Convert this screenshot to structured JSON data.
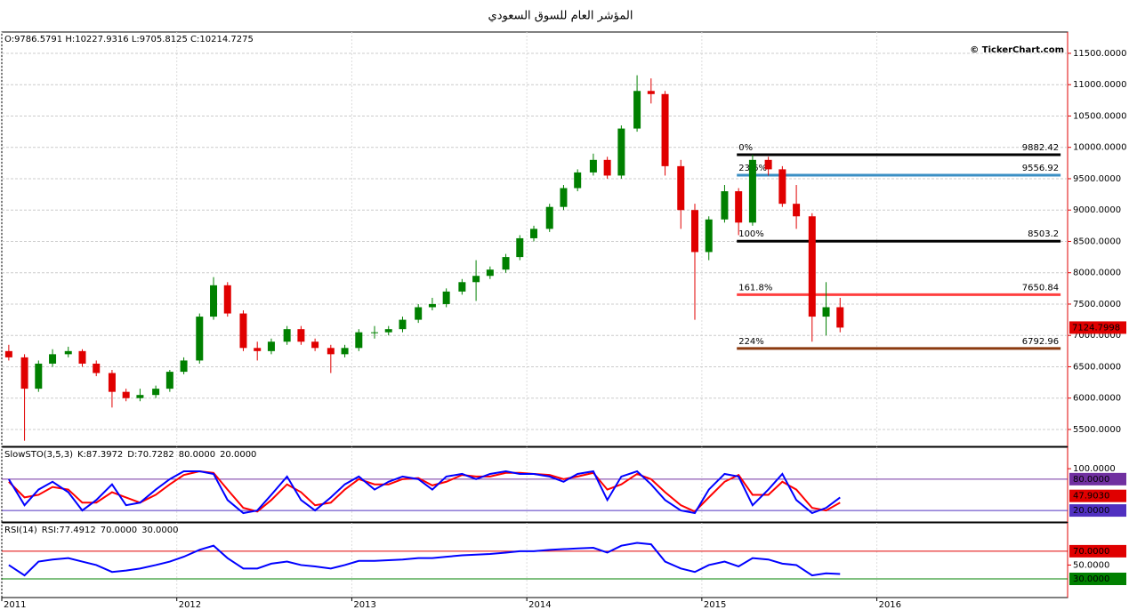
{
  "title": "المؤشر العام للسوق السعودي",
  "chart_data": [
    {
      "type": "candlestick",
      "ohlc_label": "O:9786.5791 H:10227.9316 L:9705.8125 C:10214.7275",
      "watermark": "© TickerChart.com",
      "up_color": "#008000",
      "down_color": "#e00000",
      "x": [
        2011.04,
        2011.13,
        2011.21,
        2011.29,
        2011.38,
        2011.46,
        2011.54,
        2011.63,
        2011.71,
        2011.79,
        2011.88,
        2011.96,
        2012.04,
        2012.13,
        2012.21,
        2012.29,
        2012.38,
        2012.46,
        2012.54,
        2012.63,
        2012.71,
        2012.79,
        2012.88,
        2012.96,
        2013.04,
        2013.13,
        2013.21,
        2013.29,
        2013.38,
        2013.46,
        2013.54,
        2013.63,
        2013.71,
        2013.79,
        2013.88,
        2013.96,
        2014.04,
        2014.13,
        2014.21,
        2014.29,
        2014.38,
        2014.46,
        2014.54,
        2014.63,
        2014.71,
        2014.79,
        2014.88,
        2014.96,
        2015.04,
        2015.13,
        2015.21,
        2015.29,
        2015.38,
        2015.46,
        2015.54,
        2015.63,
        2015.71,
        2015.79
      ],
      "open": [
        6750,
        6650,
        6150,
        6550,
        6700,
        6750,
        6550,
        6400,
        6100,
        6000,
        6050,
        6150,
        6420,
        6600,
        7300,
        7800,
        7350,
        6800,
        6750,
        6900,
        7100,
        6900,
        6800,
        6700,
        6800,
        7050,
        7050,
        7100,
        7250,
        7450,
        7500,
        7700,
        7850,
        7950,
        8050,
        8250,
        8550,
        8700,
        9050,
        9350,
        9600,
        9800,
        9550,
        10300,
        10900,
        10850,
        9700,
        9000,
        8330,
        8850,
        9300,
        8800,
        9800,
        9650,
        9100,
        8900,
        7300,
        7450
      ],
      "high": [
        6850,
        6700,
        6600,
        6780,
        6820,
        6780,
        6600,
        6450,
        6150,
        6150,
        6200,
        6450,
        6650,
        7350,
        7930,
        7850,
        7400,
        6900,
        6950,
        7150,
        7150,
        6950,
        6850,
        6850,
        7100,
        7150,
        7150,
        7300,
        7500,
        7600,
        7750,
        7900,
        8200,
        8100,
        8300,
        8600,
        8750,
        9100,
        9400,
        9650,
        9900,
        9850,
        10350,
        11150,
        11100,
        10900,
        9800,
        9100,
        8900,
        9400,
        9350,
        9880,
        9850,
        9700,
        9400,
        8950,
        7850,
        7600
      ],
      "low": [
        6600,
        5320,
        6100,
        6500,
        6650,
        6500,
        6350,
        5850,
        5950,
        5950,
        6000,
        6100,
        6380,
        6550,
        7250,
        7300,
        6750,
        6600,
        6700,
        6850,
        6850,
        6750,
        6400,
        6650,
        6750,
        6950,
        7000,
        7050,
        7200,
        7400,
        7450,
        7650,
        7550,
        7900,
        8000,
        8200,
        8500,
        8650,
        9000,
        9300,
        9550,
        9500,
        9500,
        10250,
        10700,
        9550,
        8700,
        7250,
        8200,
        8800,
        8600,
        8750,
        9550,
        9050,
        8700,
        6900,
        7000,
        7050
      ],
      "close": [
        6650,
        6150,
        6550,
        6700,
        6750,
        6550,
        6400,
        6100,
        6000,
        6050,
        6150,
        6420,
        6600,
        7300,
        7800,
        7350,
        6800,
        6750,
        6900,
        7100,
        6900,
        6800,
        6700,
        6800,
        7050,
        7050,
        7100,
        7250,
        7450,
        7500,
        7700,
        7850,
        7950,
        8050,
        8250,
        8550,
        8700,
        9050,
        9350,
        9600,
        9800,
        9550,
        10300,
        10900,
        10850,
        9700,
        9000,
        8330,
        8850,
        9300,
        8800,
        9800,
        9650,
        9100,
        8900,
        7300,
        7450,
        7125
      ],
      "last_label": {
        "value": 7124.7998,
        "label": "7124.7998"
      },
      "fib_x": [
        2015.2,
        2017.05
      ],
      "fib_levels": [
        {
          "pct": "0%",
          "value": 9882.42,
          "color": "#000000"
        },
        {
          "pct": "23.6%",
          "value": 9556.92,
          "color": "#3b8fc4"
        },
        {
          "pct": "100%",
          "value": 8503.2,
          "color": "#000000"
        },
        {
          "pct": "161.8%",
          "value": 7650.84,
          "color": "#ff4040"
        },
        {
          "pct": "224%",
          "value": 6792.96,
          "color": "#8b3a0f"
        }
      ],
      "xlim": [
        2011,
        2017.09
      ],
      "ylim": [
        5230,
        11840
      ],
      "yticks": [
        {
          "value": 5500,
          "label": "5500.0000"
        },
        {
          "value": 6000,
          "label": "6000.0000"
        },
        {
          "value": 6500,
          "label": "6500.0000"
        },
        {
          "value": 7000,
          "label": "7000.0000"
        },
        {
          "value": 7500,
          "label": "7500.0000"
        },
        {
          "value": 8000,
          "label": "8000.0000"
        },
        {
          "value": 8500,
          "label": "8500.0000"
        },
        {
          "value": 9000,
          "label": "9000.0000"
        },
        {
          "value": 9500,
          "label": "9500.0000"
        },
        {
          "value": 10000,
          "label": "10000.0000"
        },
        {
          "value": 10500,
          "label": "10500.0000"
        },
        {
          "value": 11000,
          "label": "11000.0000"
        },
        {
          "value": 11500,
          "label": "11500.0000"
        }
      ],
      "grid": true
    },
    {
      "type": "line",
      "title": "SlowSTO(3,5,3)",
      "readouts": [
        {
          "label": "K:87.3972",
          "color": "#0000cc"
        },
        {
          "label": "D:70.7282",
          "color": "#cc0000"
        }
      ],
      "x": [
        2011.04,
        2011.13,
        2011.21,
        2011.29,
        2011.38,
        2011.46,
        2011.54,
        2011.63,
        2011.71,
        2011.79,
        2011.88,
        2011.96,
        2012.04,
        2012.13,
        2012.21,
        2012.29,
        2012.38,
        2012.46,
        2012.54,
        2012.63,
        2012.71,
        2012.79,
        2012.88,
        2012.96,
        2013.04,
        2013.13,
        2013.21,
        2013.29,
        2013.38,
        2013.46,
        2013.54,
        2013.63,
        2013.71,
        2013.79,
        2013.88,
        2013.96,
        2014.04,
        2014.13,
        2014.21,
        2014.29,
        2014.38,
        2014.46,
        2014.54,
        2014.63,
        2014.71,
        2014.79,
        2014.88,
        2014.96,
        2015.04,
        2015.13,
        2015.21,
        2015.29,
        2015.38,
        2015.46,
        2015.54,
        2015.63,
        2015.71,
        2015.79
      ],
      "series": [
        {
          "color": "#0000ff",
          "values": [
            80,
            30,
            60,
            75,
            55,
            20,
            40,
            70,
            30,
            35,
            60,
            80,
            95,
            95,
            90,
            40,
            15,
            20,
            50,
            85,
            40,
            20,
            45,
            70,
            85,
            60,
            75,
            85,
            80,
            60,
            85,
            90,
            80,
            90,
            95,
            90,
            90,
            85,
            75,
            90,
            95,
            40,
            85,
            95,
            70,
            40,
            20,
            15,
            60,
            90,
            85,
            30,
            60,
            90,
            40,
            15,
            25,
            45
          ]
        },
        {
          "color": "#ff0000",
          "values": [
            75,
            45,
            50,
            65,
            60,
            35,
            35,
            55,
            45,
            35,
            50,
            70,
            88,
            95,
            92,
            60,
            25,
            18,
            40,
            70,
            55,
            30,
            35,
            60,
            80,
            70,
            70,
            80,
            82,
            68,
            75,
            88,
            85,
            85,
            92,
            92,
            90,
            88,
            80,
            85,
            92,
            60,
            70,
            90,
            80,
            55,
            30,
            18,
            45,
            75,
            88,
            50,
            50,
            75,
            60,
            25,
            20,
            35
          ]
        }
      ],
      "levels": [
        {
          "value": 80,
          "label": "80.0000",
          "color": "#7030a0"
        },
        {
          "value": 20,
          "label": "20.0000",
          "color": "#5030c0"
        }
      ],
      "last_label": {
        "value": 47.903,
        "label": "47.9030",
        "color": "#e00000"
      },
      "xlim": [
        2011,
        2017.09
      ],
      "ylim": [
        -2,
        141
      ],
      "yticks": [
        {
          "value": 100,
          "label": "100.0000"
        }
      ]
    },
    {
      "type": "line",
      "title": "RSI(14)",
      "readouts": [
        {
          "label": "RSI:77.4912",
          "color": "#0000cc"
        }
      ],
      "x": [
        2011.04,
        2011.13,
        2011.21,
        2011.29,
        2011.38,
        2011.46,
        2011.54,
        2011.63,
        2011.71,
        2011.79,
        2011.88,
        2011.96,
        2012.04,
        2012.13,
        2012.21,
        2012.29,
        2012.38,
        2012.46,
        2012.54,
        2012.63,
        2012.71,
        2012.79,
        2012.88,
        2012.96,
        2013.04,
        2013.13,
        2013.21,
        2013.29,
        2013.38,
        2013.46,
        2013.54,
        2013.63,
        2013.71,
        2013.79,
        2013.88,
        2013.96,
        2014.04,
        2014.13,
        2014.21,
        2014.29,
        2014.38,
        2014.46,
        2014.54,
        2014.63,
        2014.71,
        2014.79,
        2014.88,
        2014.96,
        2015.04,
        2015.13,
        2015.21,
        2015.29,
        2015.38,
        2015.46,
        2015.54,
        2015.63,
        2015.71,
        2015.79
      ],
      "series": [
        {
          "color": "#0000ff",
          "values": [
            50,
            35,
            55,
            58,
            60,
            55,
            50,
            40,
            42,
            45,
            50,
            55,
            62,
            72,
            78,
            60,
            45,
            45,
            52,
            55,
            50,
            48,
            45,
            50,
            56,
            56,
            57,
            58,
            60,
            60,
            62,
            64,
            65,
            66,
            68,
            70,
            70,
            72,
            73,
            74,
            75,
            68,
            78,
            82,
            80,
            55,
            45,
            40,
            50,
            55,
            48,
            60,
            58,
            52,
            50,
            35,
            38,
            37
          ]
        }
      ],
      "levels": [
        {
          "value": 70,
          "label": "70.0000",
          "color": "#e00000"
        },
        {
          "value": 30,
          "label": "30.0000",
          "color": "#008000"
        }
      ],
      "xlim": [
        2011,
        2017.09
      ],
      "ylim": [
        3,
        111
      ],
      "yticks": [
        {
          "value": 50,
          "label": "50.0000"
        }
      ],
      "xticks": [
        {
          "value": 2011,
          "label": "2011"
        },
        {
          "value": 2012,
          "label": "2012"
        },
        {
          "value": 2013,
          "label": "2013"
        },
        {
          "value": 2014,
          "label": "2014"
        },
        {
          "value": 2015,
          "label": "2015"
        },
        {
          "value": 2016,
          "label": "2016"
        }
      ]
    }
  ]
}
